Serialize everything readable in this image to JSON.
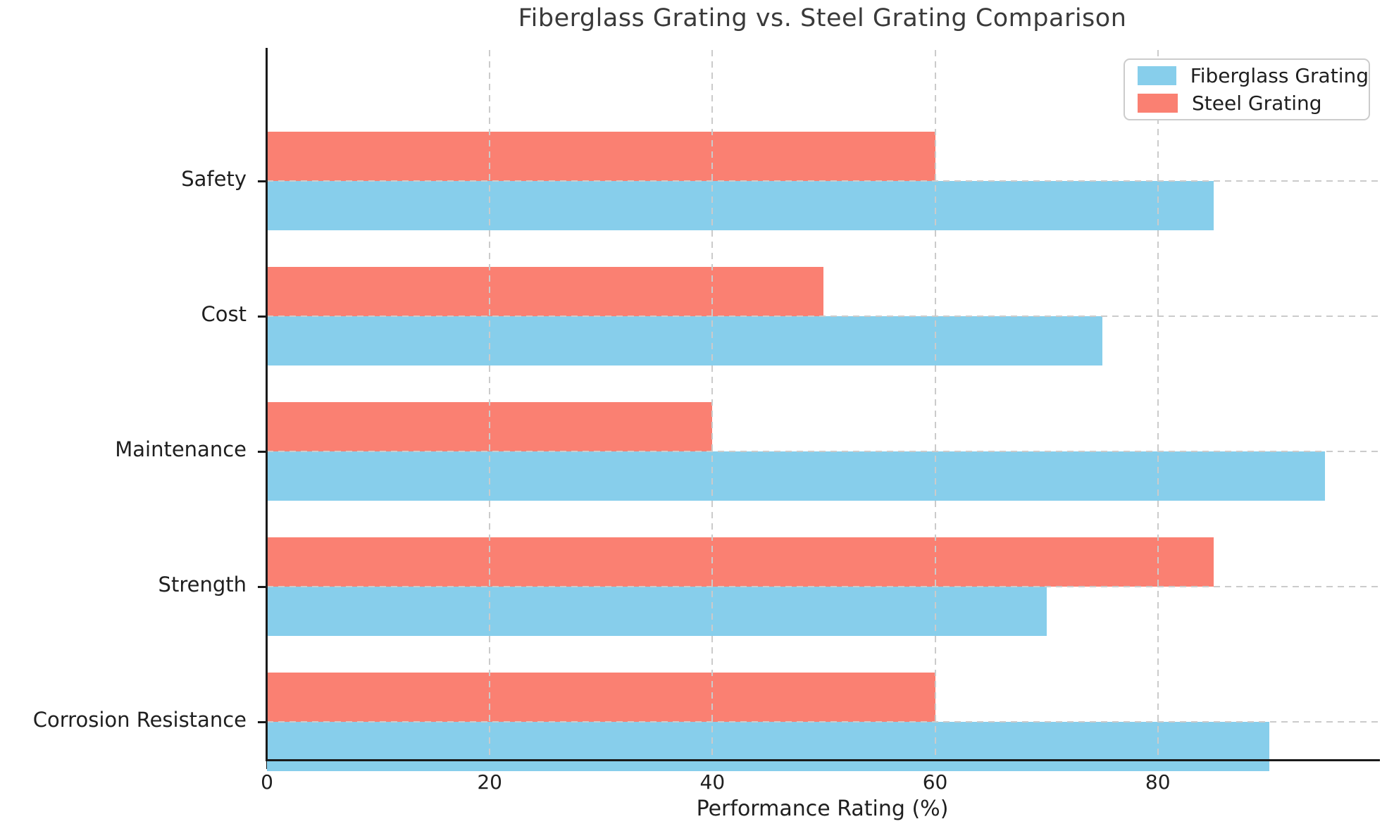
{
  "chart_data": {
    "type": "bar",
    "orientation": "horizontal",
    "title": "Fiberglass Grating vs. Steel Grating Comparison",
    "xlabel": "Performance Rating (%)",
    "ylabel": "",
    "categories": [
      "Safety",
      "Cost",
      "Maintenance",
      "Strength",
      "Corrosion Resistance"
    ],
    "series": [
      {
        "name": "Fiberglass Grating",
        "color": "#87CEEB",
        "values": [
          85,
          75,
          95,
          70,
          90
        ]
      },
      {
        "name": "Steel Grating",
        "color": "#FA8072",
        "values": [
          60,
          50,
          40,
          85,
          60
        ]
      }
    ],
    "xticks": [
      0,
      20,
      40,
      60,
      80
    ],
    "xlim": [
      0,
      99.75
    ],
    "grid": {
      "style": "dashed",
      "color": "#cccccc",
      "axes": "both",
      "above_bars": true
    },
    "legend": {
      "position": "upper right"
    },
    "axis_color": "#1a1a1a",
    "text_color": "#1f1f1f",
    "title_color": "#3a3a3a"
  }
}
